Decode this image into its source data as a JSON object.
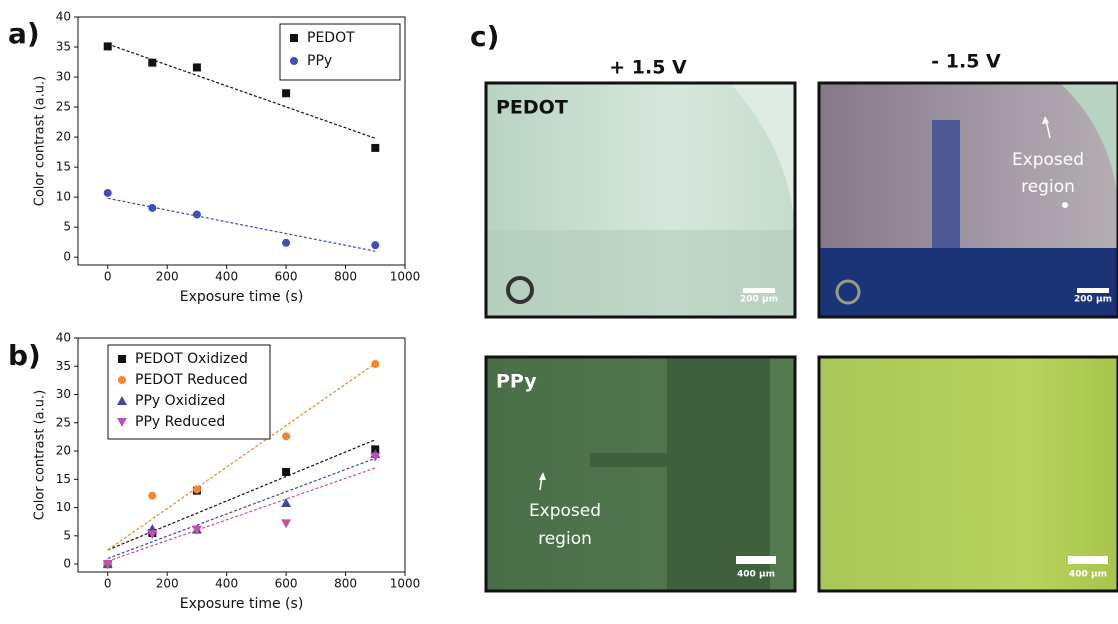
{
  "chart_data": [
    {
      "type": "scatter",
      "panel": "a)",
      "x_label": "Exposure time (s)",
      "y_label": "Color contrast (a.u.)",
      "xlim": [
        -100,
        1000
      ],
      "xticks": [
        0,
        200,
        400,
        600,
        800,
        1000
      ],
      "ylim": [
        -1.3,
        40
      ],
      "yticks": [
        0,
        5,
        10,
        15,
        20,
        25,
        30,
        35,
        40
      ],
      "legend": "upper right",
      "series": [
        {
          "name": "PEDOT",
          "color": "#111111",
          "marker": "square",
          "x": [
            0,
            150,
            300,
            600,
            900
          ],
          "values": [
            35.1,
            32.4,
            31.6,
            27.3,
            18.2
          ],
          "trend": {
            "x": [
              0,
              900
            ],
            "values": [
              35.5,
              19.8
            ]
          }
        },
        {
          "name": "PPy",
          "color": "#3f51b5",
          "marker": "circle",
          "x": [
            0,
            150,
            300,
            600,
            900
          ],
          "values": [
            10.7,
            8.2,
            7.1,
            2.4,
            2.0
          ],
          "trend": {
            "x": [
              0,
              900
            ],
            "values": [
              9.8,
              1.0
            ]
          }
        }
      ]
    },
    {
      "type": "scatter",
      "panel": "b)",
      "x_label": "Exposure time (s)",
      "y_label": "Color contrast (a.u.)",
      "xlim": [
        -100,
        1000
      ],
      "xticks": [
        0,
        200,
        400,
        600,
        800,
        1000
      ],
      "ylim": [
        -1.4,
        40
      ],
      "yticks": [
        0,
        5,
        10,
        15,
        20,
        25,
        30,
        35,
        40
      ],
      "legend": "upper left",
      "series": [
        {
          "name": "PEDOT Oxidized",
          "color": "#111111",
          "marker": "square",
          "x": [
            0,
            150,
            300,
            600,
            900
          ],
          "values": [
            0,
            5.5,
            13.0,
            16.3,
            20.3
          ],
          "trend": {
            "x": [
              0,
              900
            ],
            "values": [
              2.5,
              22.0
            ]
          }
        },
        {
          "name": "PEDOT Reduced",
          "color": "#f5862a",
          "marker": "circle",
          "x": [
            0,
            150,
            300,
            600,
            900
          ],
          "values": [
            0,
            12.1,
            13.2,
            22.6,
            35.4
          ],
          "trend": {
            "x": [
              0,
              900
            ],
            "values": [
              2.5,
              35.5
            ]
          }
        },
        {
          "name": "PPy Oxidized",
          "color": "#3c4ca8",
          "marker": "triangle",
          "x": [
            0,
            150,
            300,
            600,
            900
          ],
          "values": [
            0,
            6.2,
            6.1,
            10.8,
            19.5
          ],
          "trend": {
            "x": [
              0,
              900
            ],
            "values": [
              1.0,
              18.7
            ]
          }
        },
        {
          "name": "PPy Reduced",
          "color": "#c44fb0",
          "marker": "triangle-down",
          "x": [
            0,
            150,
            300,
            600,
            900
          ],
          "values": [
            0,
            5.3,
            6.1,
            7.2,
            19.0
          ],
          "trend": {
            "x": [
              0,
              900
            ],
            "values": [
              0.5,
              17.0
            ]
          }
        }
      ]
    }
  ],
  "panel_c": {
    "label": "c)",
    "columns": [
      "+ 1.5 V",
      "- 1.5 V"
    ],
    "rows": [
      {
        "label": "PEDOT",
        "scale_bars": [
          "200 µm",
          "200 µm"
        ],
        "annotation": [
          "Exposed",
          "region"
        ]
      },
      {
        "label": "PPy",
        "scale_bars": [
          "400 µm",
          "400 µm"
        ],
        "annotation": [
          "Exposed",
          "region"
        ]
      }
    ]
  }
}
